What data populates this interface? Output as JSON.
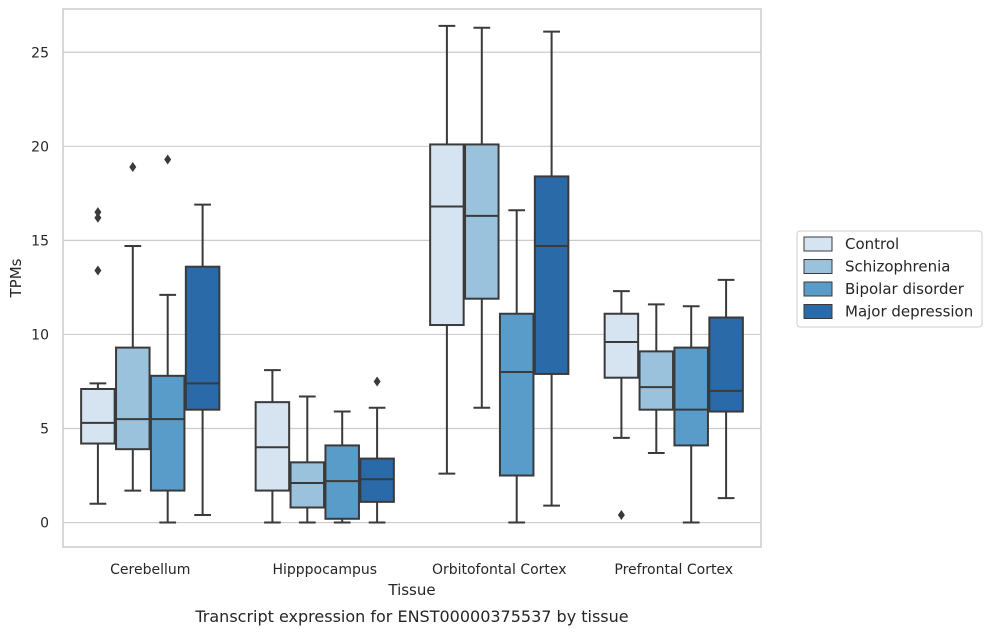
{
  "chart_data": {
    "type": "box",
    "title": "",
    "caption": "Transcript expression for ENST00000375537 by tissue",
    "xlabel": "Tissue",
    "ylabel": "TPMs",
    "ylim": [
      -1.3,
      27.3
    ],
    "yticks": [
      0,
      5,
      10,
      15,
      20,
      25
    ],
    "grid": "horizontal",
    "legend_position": "right",
    "categories": [
      "Cerebellum",
      "Hipppocampus",
      "Orbitofontal Cortex",
      "Prefrontal Cortex"
    ],
    "series": [
      {
        "name": "Control",
        "color": "#d6e4f2",
        "boxes": [
          {
            "whisker_low": 1.0,
            "q1": 4.2,
            "median": 5.3,
            "q3": 7.1,
            "whisker_high": 7.4,
            "outliers": [
              13.4,
              16.2,
              16.5
            ]
          },
          {
            "whisker_low": 0.0,
            "q1": 1.7,
            "median": 4.0,
            "q3": 6.4,
            "whisker_high": 8.1,
            "outliers": []
          },
          {
            "whisker_low": 2.6,
            "q1": 10.5,
            "median": 16.8,
            "q3": 20.1,
            "whisker_high": 26.4,
            "outliers": []
          },
          {
            "whisker_low": 4.5,
            "q1": 7.7,
            "median": 9.6,
            "q3": 11.1,
            "whisker_high": 12.3,
            "outliers": [
              0.4
            ]
          }
        ]
      },
      {
        "name": "Schizophrenia",
        "color": "#9ac2dd",
        "boxes": [
          {
            "whisker_low": 1.7,
            "q1": 3.9,
            "median": 5.5,
            "q3": 9.3,
            "whisker_high": 14.7,
            "outliers": [
              18.9
            ]
          },
          {
            "whisker_low": 0.0,
            "q1": 0.8,
            "median": 2.1,
            "q3": 3.2,
            "whisker_high": 6.7,
            "outliers": []
          },
          {
            "whisker_low": 6.1,
            "q1": 11.9,
            "median": 16.3,
            "q3": 20.1,
            "whisker_high": 26.3,
            "outliers": []
          },
          {
            "whisker_low": 3.7,
            "q1": 6.0,
            "median": 7.2,
            "q3": 9.1,
            "whisker_high": 11.6,
            "outliers": []
          }
        ]
      },
      {
        "name": "Bipolar disorder",
        "color": "#5a9cc9",
        "boxes": [
          {
            "whisker_low": 0.0,
            "q1": 1.7,
            "median": 5.5,
            "q3": 7.8,
            "whisker_high": 12.1,
            "outliers": [
              19.3
            ]
          },
          {
            "whisker_low": 0.0,
            "q1": 0.2,
            "median": 2.2,
            "q3": 4.1,
            "whisker_high": 5.9,
            "outliers": []
          },
          {
            "whisker_low": 0.0,
            "q1": 2.5,
            "median": 8.0,
            "q3": 11.1,
            "whisker_high": 16.6,
            "outliers": []
          },
          {
            "whisker_low": 0.0,
            "q1": 4.1,
            "median": 6.0,
            "q3": 9.3,
            "whisker_high": 11.5,
            "outliers": []
          }
        ]
      },
      {
        "name": "Major depression",
        "color": "#2b6aa8",
        "boxes": [
          {
            "whisker_low": 0.4,
            "q1": 6.0,
            "median": 7.4,
            "q3": 13.6,
            "whisker_high": 16.9,
            "outliers": []
          },
          {
            "whisker_low": 0.0,
            "q1": 1.1,
            "median": 2.3,
            "q3": 3.4,
            "whisker_high": 6.1,
            "outliers": [
              7.5
            ]
          },
          {
            "whisker_low": 0.9,
            "q1": 7.9,
            "median": 14.7,
            "q3": 18.4,
            "whisker_high": 26.1,
            "outliers": []
          },
          {
            "whisker_low": 1.3,
            "q1": 5.9,
            "median": 7.0,
            "q3": 10.9,
            "whisker_high": 12.9,
            "outliers": []
          }
        ]
      }
    ]
  }
}
